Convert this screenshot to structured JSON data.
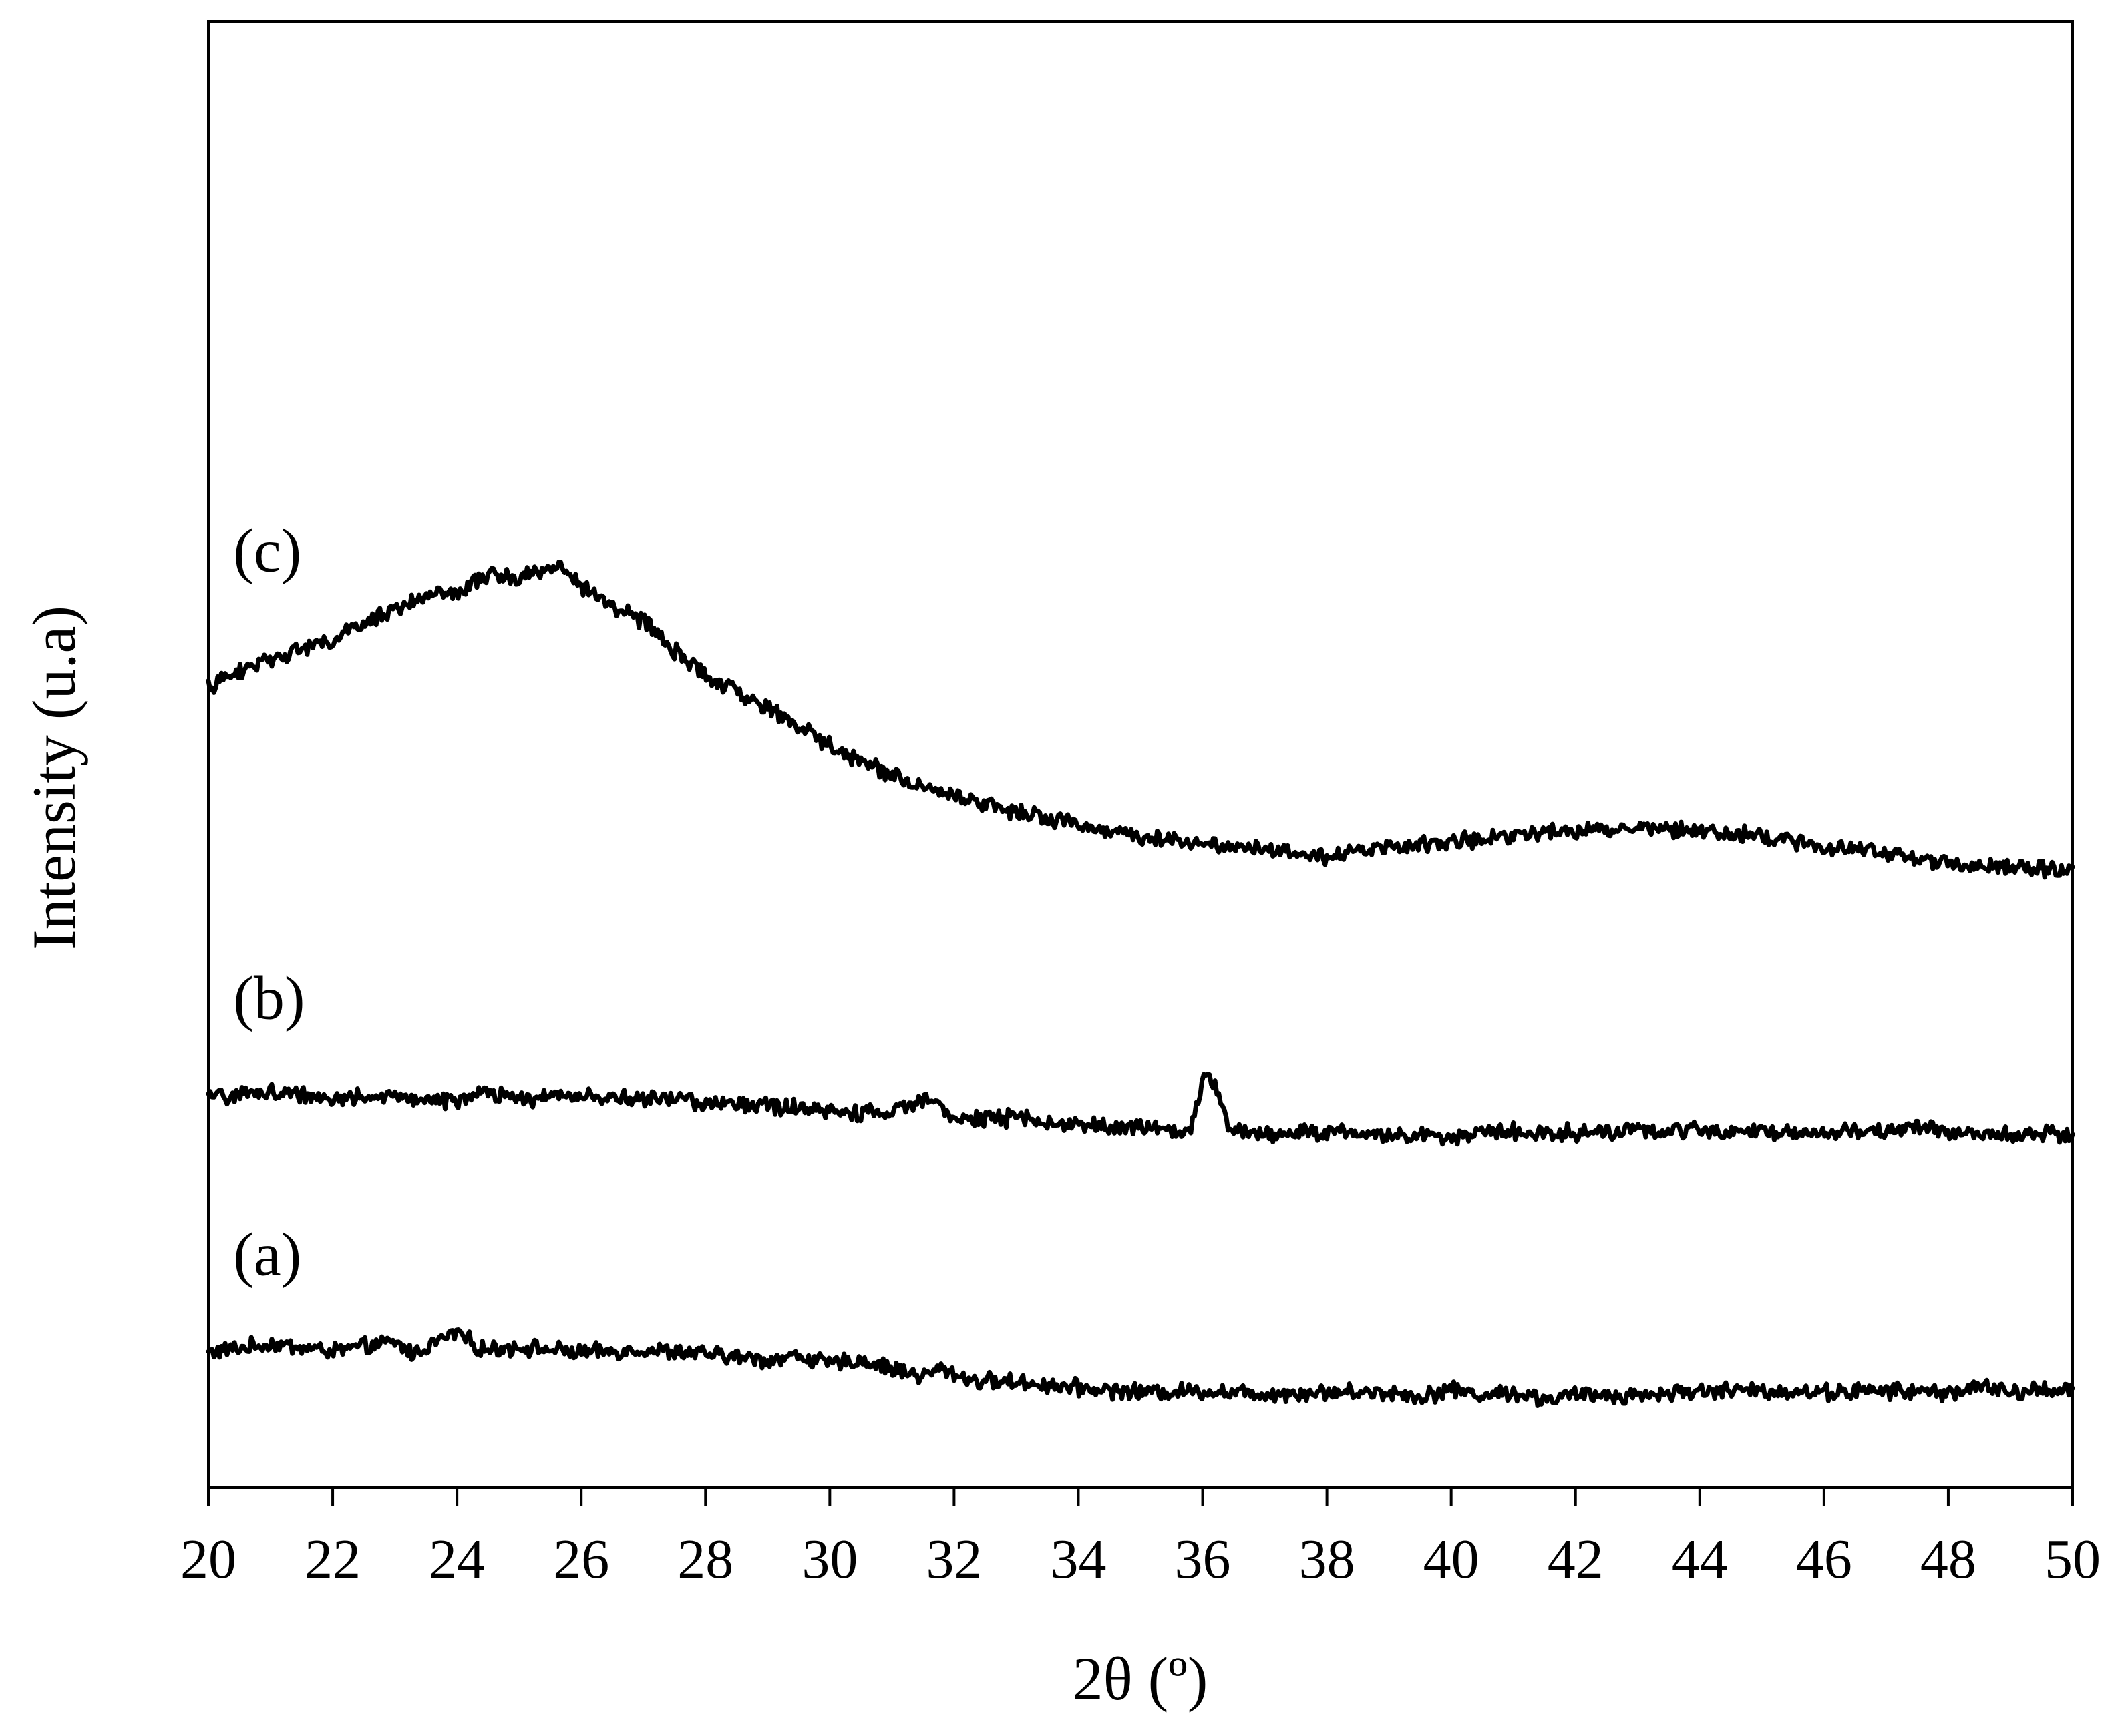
{
  "chart_data": {
    "type": "line",
    "xlabel": "2θ (º)",
    "ylabel": "Intensity (u.a)",
    "xlim": [
      20,
      50
    ],
    "ylim": [
      0,
      100
    ],
    "xticks": [
      "20",
      "22",
      "24",
      "26",
      "28",
      "30",
      "32",
      "34",
      "36",
      "38",
      "40",
      "42",
      "44",
      "46",
      "48",
      "50"
    ],
    "yticks_visible": false,
    "grid": false,
    "line_color": "#000000",
    "series": [
      {
        "name": "(a)",
        "label_at": [
          20.4,
          14.5
        ],
        "x": [
          20,
          21,
          22,
          22.5,
          23,
          23.3,
          23.6,
          24,
          24.4,
          25,
          26,
          27,
          28,
          29,
          29.5,
          30,
          30.5,
          31,
          31.5,
          31.8,
          32.3,
          33,
          34,
          35,
          36,
          37,
          38,
          39,
          39.5,
          40,
          40.5,
          41,
          41.5,
          42,
          43,
          44,
          45,
          46,
          47,
          48,
          48.7,
          49,
          49.5,
          50
        ],
        "y": [
          9.2,
          9.8,
          9.3,
          9.6,
          9.9,
          9.1,
          9.8,
          10.6,
          9.4,
          9.6,
          9.2,
          9.4,
          9.1,
          8.7,
          9.0,
          8.4,
          8.7,
          8.1,
          7.6,
          8.1,
          7.3,
          7.2,
          6.8,
          6.5,
          6.6,
          6.4,
          6.5,
          6.5,
          6.2,
          6.7,
          6.3,
          6.5,
          6.0,
          6.3,
          6.3,
          6.6,
          6.6,
          6.5,
          6.6,
          6.5,
          6.9,
          6.4,
          6.7,
          6.7
        ]
      },
      {
        "name": "(b)",
        "label_at": [
          20.4,
          32.0
        ],
        "x": [
          20,
          21,
          22,
          23,
          24,
          24.5,
          25,
          26,
          27,
          27.5,
          28,
          29,
          30,
          31,
          31.5,
          31.7,
          32,
          33,
          34,
          35,
          35.5,
          35.8,
          36.0,
          36.1,
          36.2,
          36.4,
          36.7,
          37,
          38,
          39,
          40,
          41,
          42,
          43,
          44,
          45,
          46,
          47,
          47.5,
          48,
          49,
          50
        ],
        "y": [
          26.6,
          27.0,
          26.6,
          26.6,
          26.4,
          26.9,
          26.5,
          26.8,
          26.4,
          26.6,
          26.2,
          26.1,
          25.6,
          25.5,
          26.5,
          26.8,
          25.1,
          25.2,
          24.7,
          24.6,
          24.2,
          24.4,
          27.6,
          28.0,
          27.2,
          24.9,
          24.2,
          24.1,
          24.3,
          24.0,
          24.0,
          24.3,
          24.2,
          24.3,
          24.4,
          24.3,
          24.2,
          24.3,
          24.6,
          24.2,
          24.2,
          24.1
        ]
      },
      {
        "name": "(c)",
        "label_at": [
          20.4,
          62.5
        ],
        "x": [
          20,
          21,
          22,
          23,
          23.5,
          24,
          24.5,
          25,
          25.3,
          25.7,
          26,
          26.5,
          27,
          27.5,
          28,
          29,
          30,
          31,
          32,
          33,
          34,
          35,
          36,
          37,
          38,
          39,
          40,
          41,
          42,
          43,
          44,
          45,
          46,
          47,
          48,
          49,
          50
        ],
        "y": [
          54.6,
          56.6,
          57.8,
          60.0,
          60.7,
          61.0,
          62.3,
          62.0,
          62.6,
          62.8,
          61.4,
          60.2,
          59.1,
          57.1,
          55.3,
          53.2,
          50.6,
          48.6,
          47.2,
          46.1,
          45.2,
          44.4,
          44.0,
          43.6,
          43.1,
          43.7,
          44.0,
          44.6,
          44.8,
          45.0,
          44.9,
          44.4,
          43.7,
          43.3,
          42.6,
          42.3,
          42.0
        ]
      }
    ]
  }
}
